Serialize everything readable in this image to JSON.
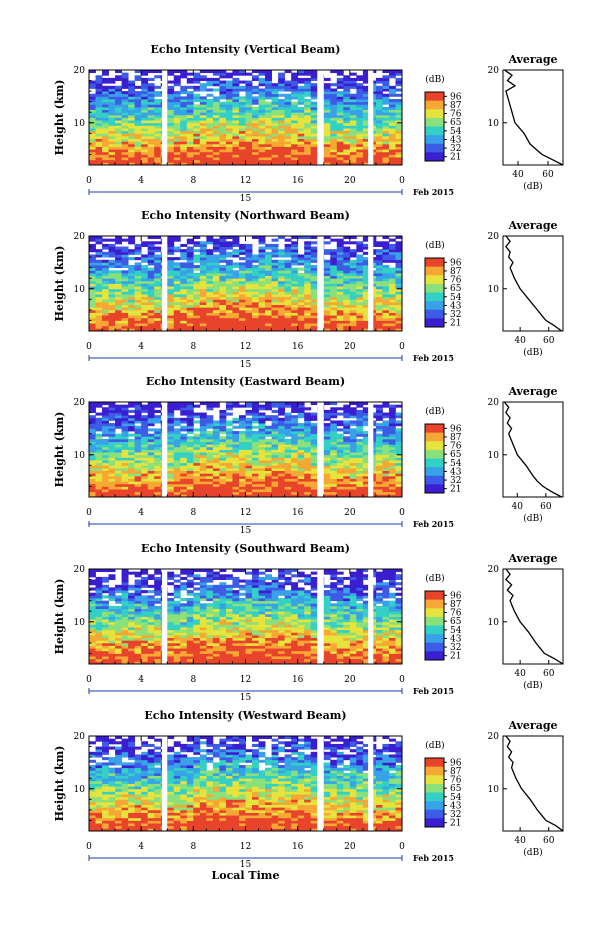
{
  "colors": {
    "colormap": [
      "#3a1fd1",
      "#3c5be6",
      "#38a2e8",
      "#33d0c6",
      "#8ae07a",
      "#e6e43c",
      "#f7a734",
      "#e8442b"
    ],
    "gap_fill": "#ffffff",
    "profile_line": "#000000"
  },
  "chart_data": [
    {
      "type": "heatmap",
      "title": "Echo Intensity (Vertical Beam)",
      "ylabel": "Height (km)",
      "xlabel": "",
      "x_ticks": [
        "0",
        "4",
        "8",
        "12",
        "16",
        "20",
        "0"
      ],
      "y_ticks": [
        "10",
        "20"
      ],
      "xlim": [
        0,
        24
      ],
      "ylim": [
        2,
        20
      ],
      "date_label": "15",
      "month_label": "Feb 2015",
      "colorbar": {
        "unit": "(dB)",
        "ticks": [
          "96",
          "87",
          "76",
          "65",
          "54",
          "43",
          "32",
          "21"
        ]
      },
      "data_gaps_hours": [
        [
          5.6,
          6.0
        ],
        [
          17.5,
          18.0
        ],
        [
          21.4,
          21.8
        ]
      ],
      "profile": {
        "title": "Average",
        "unit": "(dB)",
        "x_ticks": [
          "40",
          "60"
        ],
        "xlim": [
          30,
          70
        ],
        "height_km": [
          2,
          3,
          4,
          5,
          6,
          8,
          10,
          12,
          14,
          16,
          17,
          18,
          19,
          20
        ],
        "values_db": [
          70,
          63,
          56,
          52,
          48,
          44,
          38,
          36,
          34,
          32,
          38,
          33,
          36,
          31
        ]
      }
    },
    {
      "type": "heatmap",
      "title": "Echo Intensity (Northward Beam)",
      "ylabel": "Height (km)",
      "xlabel": "",
      "x_ticks": [
        "0",
        "4",
        "8",
        "12",
        "16",
        "20",
        "0"
      ],
      "y_ticks": [
        "10",
        "20"
      ],
      "xlim": [
        0,
        24
      ],
      "ylim": [
        2,
        20
      ],
      "date_label": "15",
      "month_label": "Feb 2015",
      "colorbar": {
        "unit": "(dB)",
        "ticks": [
          "96",
          "87",
          "76",
          "65",
          "54",
          "43",
          "32",
          "21"
        ]
      },
      "data_gaps_hours": [
        [
          5.6,
          6.0
        ],
        [
          17.5,
          18.0
        ],
        [
          21.4,
          21.8
        ]
      ],
      "profile": {
        "title": "Average",
        "unit": "(dB)",
        "x_ticks": [
          "40",
          "60"
        ],
        "xlim": [
          28,
          70
        ],
        "height_km": [
          2,
          3,
          4,
          5,
          6,
          8,
          10,
          12,
          14,
          15,
          16,
          17,
          18,
          19,
          20
        ],
        "values_db": [
          69,
          64,
          58,
          55,
          52,
          46,
          40,
          36,
          33,
          35,
          32,
          33,
          30,
          33,
          30
        ]
      }
    },
    {
      "type": "heatmap",
      "title": "Echo Intensity (Eastward Beam)",
      "ylabel": "Height (km)",
      "xlabel": "",
      "x_ticks": [
        "0",
        "4",
        "8",
        "12",
        "16",
        "20",
        "0"
      ],
      "y_ticks": [
        "10",
        "20"
      ],
      "xlim": [
        0,
        24
      ],
      "ylim": [
        2,
        20
      ],
      "date_label": "15",
      "month_label": "Feb 2015",
      "colorbar": {
        "unit": "(dB)",
        "ticks": [
          "96",
          "87",
          "76",
          "65",
          "54",
          "43",
          "32",
          "21"
        ]
      },
      "data_gaps_hours": [
        [
          5.6,
          6.0
        ],
        [
          17.5,
          18.0
        ],
        [
          21.4,
          21.8
        ]
      ],
      "profile": {
        "title": "Average",
        "unit": "(dB)",
        "x_ticks": [
          "40",
          "60"
        ],
        "xlim": [
          30,
          72
        ],
        "height_km": [
          2,
          3,
          4,
          5,
          6,
          8,
          10,
          12,
          14,
          15,
          16,
          17,
          18,
          19,
          20
        ],
        "values_db": [
          71,
          64,
          58,
          54,
          51,
          46,
          40,
          37,
          34,
          36,
          33,
          35,
          32,
          34,
          31
        ]
      }
    },
    {
      "type": "heatmap",
      "title": "Echo Intensity (Southward Beam)",
      "ylabel": "Height (km)",
      "xlabel": "",
      "x_ticks": [
        "0",
        "4",
        "8",
        "12",
        "16",
        "20",
        "0"
      ],
      "y_ticks": [
        "10",
        "20"
      ],
      "xlim": [
        0,
        24
      ],
      "ylim": [
        2,
        20
      ],
      "date_label": "15",
      "month_label": "Feb 2015",
      "colorbar": {
        "unit": "(dB)",
        "ticks": [
          "96",
          "87",
          "76",
          "65",
          "54",
          "43",
          "32",
          "21"
        ]
      },
      "data_gaps_hours": [
        [
          5.6,
          6.0
        ],
        [
          17.5,
          18.0
        ],
        [
          21.4,
          21.8
        ]
      ],
      "profile": {
        "title": "Average",
        "unit": "(dB)",
        "x_ticks": [
          "40",
          "60"
        ],
        "xlim": [
          28,
          70
        ],
        "height_km": [
          2,
          3,
          4,
          5,
          6,
          8,
          10,
          12,
          14,
          15,
          16,
          17,
          18,
          19,
          20
        ],
        "values_db": [
          70,
          64,
          57,
          54,
          51,
          46,
          40,
          36,
          33,
          35,
          31,
          34,
          30,
          33,
          30
        ]
      }
    },
    {
      "type": "heatmap",
      "title": "Echo Intensity (Westward Beam)",
      "ylabel": "Height (km)",
      "xlabel": "Local Time",
      "x_ticks": [
        "0",
        "4",
        "8",
        "12",
        "16",
        "20",
        "0"
      ],
      "y_ticks": [
        "10",
        "20"
      ],
      "xlim": [
        0,
        24
      ],
      "ylim": [
        2,
        20
      ],
      "date_label": "15",
      "month_label": "Feb 2015",
      "colorbar": {
        "unit": "(dB)",
        "ticks": [
          "96",
          "87",
          "76",
          "65",
          "54",
          "43",
          "32",
          "21"
        ]
      },
      "data_gaps_hours": [
        [
          5.6,
          6.0
        ],
        [
          17.5,
          18.0
        ],
        [
          21.4,
          21.8
        ]
      ],
      "profile": {
        "title": "Average",
        "unit": "(dB)",
        "x_ticks": [
          "40",
          "60"
        ],
        "xlim": [
          28,
          70
        ],
        "height_km": [
          2,
          3,
          4,
          5,
          6,
          8,
          10,
          12,
          14,
          15,
          16,
          17,
          18,
          19,
          20
        ],
        "values_db": [
          70,
          65,
          58,
          55,
          52,
          47,
          41,
          37,
          34,
          35,
          32,
          34,
          31,
          33,
          30
        ]
      }
    }
  ]
}
